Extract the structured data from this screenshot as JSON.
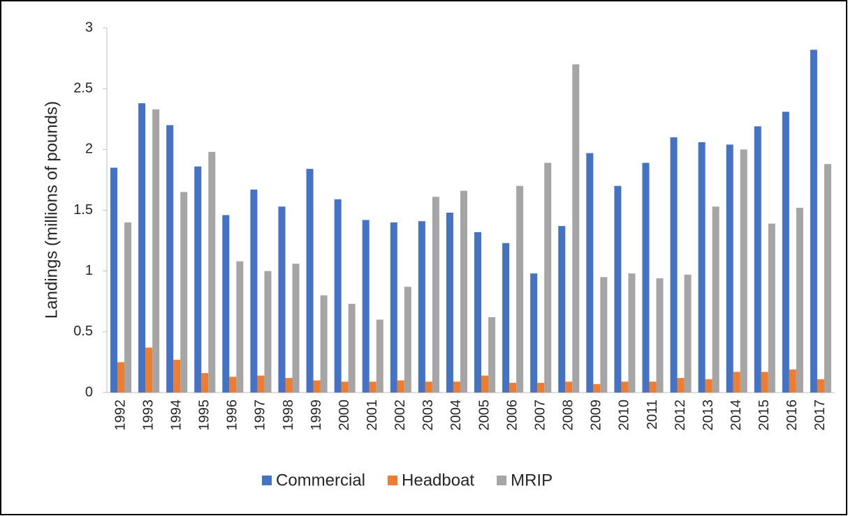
{
  "chart_data": {
    "type": "bar",
    "ylabel": "Landings (millions of pounds)",
    "categories": [
      "1992",
      "1993",
      "1994",
      "1995",
      "1996",
      "1997",
      "1998",
      "1999",
      "2000",
      "2001",
      "2002",
      "2003",
      "2004",
      "2005",
      "2006",
      "2007",
      "2008",
      "2009",
      "2010",
      "2011",
      "2012",
      "2013",
      "2014",
      "2015",
      "2016",
      "2017"
    ],
    "series": [
      {
        "name": "Commercial",
        "color": "#4472c4",
        "values": [
          1.85,
          2.38,
          2.2,
          1.86,
          1.46,
          1.67,
          1.53,
          1.84,
          1.59,
          1.42,
          1.4,
          1.41,
          1.48,
          1.32,
          1.23,
          0.98,
          1.37,
          1.97,
          1.7,
          1.89,
          2.1,
          2.06,
          2.04,
          2.19,
          2.31,
          2.82
        ]
      },
      {
        "name": "Headboat",
        "color": "#ed7d31",
        "values": [
          0.25,
          0.37,
          0.27,
          0.16,
          0.13,
          0.14,
          0.12,
          0.1,
          0.09,
          0.09,
          0.1,
          0.09,
          0.09,
          0.14,
          0.08,
          0.08,
          0.09,
          0.07,
          0.09,
          0.09,
          0.12,
          0.11,
          0.17,
          0.17,
          0.19,
          0.11
        ]
      },
      {
        "name": "MRIP",
        "color": "#a5a5a5",
        "values": [
          1.4,
          2.33,
          1.65,
          1.98,
          1.08,
          1.0,
          1.06,
          0.8,
          0.73,
          0.6,
          0.87,
          1.61,
          1.66,
          0.62,
          1.7,
          1.89,
          2.7,
          0.95,
          0.98,
          0.94,
          0.97,
          1.53,
          2.0,
          1.39,
          1.52,
          1.88
        ]
      }
    ],
    "ylim": [
      0,
      3
    ],
    "yticks": [
      0,
      0.5,
      1,
      1.5,
      2,
      2.5,
      3
    ],
    "grid": false,
    "legend": "bottom"
  }
}
